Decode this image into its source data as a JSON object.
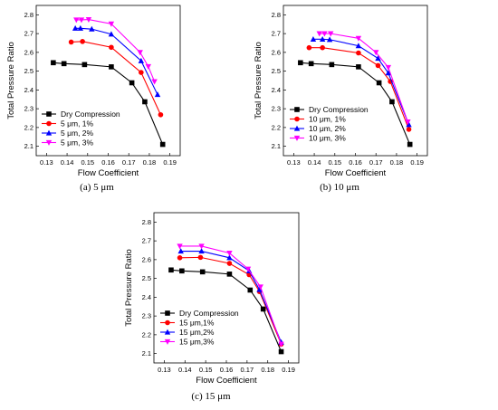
{
  "chart_data": [
    {
      "type": "line",
      "caption": "(a) 5 μm",
      "xlabel": "Flow Coefficient",
      "ylabel": "Total Pressure Ratio",
      "xlim": [
        0.125,
        0.195
      ],
      "ylim": [
        2.05,
        2.85
      ],
      "xticks": [
        0.13,
        0.14,
        0.15,
        0.16,
        0.17,
        0.18,
        0.19
      ],
      "yticks": [
        2.1,
        2.2,
        2.3,
        2.4,
        2.5,
        2.6,
        2.7,
        2.8
      ],
      "legend_position": "lower-left",
      "series": [
        {
          "name": "Dry Compression",
          "color": "#000000",
          "marker": "square",
          "x": [
            0.1333,
            0.1385,
            0.1485,
            0.1615,
            0.1715,
            0.1778,
            0.1865
          ],
          "y": [
            2.545,
            2.54,
            2.535,
            2.523,
            2.438,
            2.337,
            2.11
          ]
        },
        {
          "name": "5 μm, 1%",
          "color": "#ff0000",
          "marker": "circle",
          "x": [
            0.142,
            0.1475,
            0.1615,
            0.176,
            0.1855
          ],
          "y": [
            2.655,
            2.658,
            2.627,
            2.493,
            2.268
          ]
        },
        {
          "name": "5 μm, 2%",
          "color": "#0000ff",
          "marker": "triangle-up",
          "x": [
            0.144,
            0.1465,
            0.152,
            0.1615,
            0.176,
            0.184
          ],
          "y": [
            2.728,
            2.728,
            2.724,
            2.697,
            2.555,
            2.375
          ]
        },
        {
          "name": "5 μm, 3%",
          "color": "#ff00ff",
          "marker": "triangle-down",
          "x": [
            0.1445,
            0.147,
            0.1505,
            0.1615,
            0.1755,
            0.1795,
            0.1825
          ],
          "y": [
            2.773,
            2.773,
            2.775,
            2.752,
            2.6,
            2.525,
            2.445
          ]
        }
      ]
    },
    {
      "type": "line",
      "caption": "(b) 10 μm",
      "xlabel": "Flow Coefficient",
      "ylabel": "Total Pressure Ratio",
      "xlim": [
        0.125,
        0.195
      ],
      "ylim": [
        2.05,
        2.85
      ],
      "xticks": [
        0.13,
        0.14,
        0.15,
        0.16,
        0.17,
        0.18,
        0.19
      ],
      "yticks": [
        2.1,
        2.2,
        2.3,
        2.4,
        2.5,
        2.6,
        2.7,
        2.8
      ],
      "legend_position": "lower-left",
      "series": [
        {
          "name": "Dry Compression",
          "color": "#000000",
          "marker": "square",
          "x": [
            0.1333,
            0.1385,
            0.1485,
            0.1615,
            0.1715,
            0.1778,
            0.1865
          ],
          "y": [
            2.545,
            2.54,
            2.535,
            2.523,
            2.438,
            2.337,
            2.11
          ]
        },
        {
          "name": "10 μm, 1%",
          "color": "#ff0000",
          "marker": "circle",
          "x": [
            0.1375,
            0.144,
            0.1615,
            0.171,
            0.177,
            0.186
          ],
          "y": [
            2.625,
            2.625,
            2.597,
            2.53,
            2.445,
            2.19
          ]
        },
        {
          "name": "10 μm, 2%",
          "color": "#0000ff",
          "marker": "triangle-up",
          "x": [
            0.1395,
            0.144,
            0.1475,
            0.1615,
            0.171,
            0.176,
            0.186
          ],
          "y": [
            2.67,
            2.67,
            2.668,
            2.635,
            2.568,
            2.49,
            2.215
          ]
        },
        {
          "name": "10 μm, 3%",
          "color": "#ff00ff",
          "marker": "triangle-down",
          "x": [
            0.1425,
            0.145,
            0.148,
            0.1615,
            0.17,
            0.176,
            0.1855
          ],
          "y": [
            2.7,
            2.7,
            2.7,
            2.675,
            2.6,
            2.52,
            2.23
          ]
        }
      ]
    },
    {
      "type": "line",
      "caption": "(c) 15 μm",
      "xlabel": "Flow Coefficient",
      "ylabel": "Total Pressure Ratio",
      "xlim": [
        0.125,
        0.195
      ],
      "ylim": [
        2.05,
        2.85
      ],
      "xticks": [
        0.13,
        0.14,
        0.15,
        0.16,
        0.17,
        0.18,
        0.19
      ],
      "yticks": [
        2.1,
        2.2,
        2.3,
        2.4,
        2.5,
        2.6,
        2.7,
        2.8
      ],
      "legend_position": "lower-left",
      "series": [
        {
          "name": "Dry Compression",
          "color": "#000000",
          "marker": "square",
          "x": [
            0.1333,
            0.1385,
            0.1485,
            0.1615,
            0.1715,
            0.1778,
            0.1865
          ],
          "y": [
            2.545,
            2.54,
            2.535,
            2.523,
            2.438,
            2.337,
            2.11
          ]
        },
        {
          "name": "15 μm,1%",
          "color": "#ff0000",
          "marker": "circle",
          "x": [
            0.1375,
            0.1475,
            0.1615,
            0.171,
            0.176,
            0.1865
          ],
          "y": [
            2.61,
            2.612,
            2.58,
            2.52,
            2.43,
            2.15
          ]
        },
        {
          "name": "15 μm,2%",
          "color": "#0000ff",
          "marker": "triangle-up",
          "x": [
            0.138,
            0.148,
            0.1615,
            0.171,
            0.176,
            0.1865
          ],
          "y": [
            2.645,
            2.645,
            2.61,
            2.54,
            2.44,
            2.16
          ]
        },
        {
          "name": "15 μm,3%",
          "color": "#ff00ff",
          "marker": "triangle-down",
          "x": [
            0.1375,
            0.148,
            0.1615,
            0.1705,
            0.1765,
            0.1865
          ],
          "y": [
            2.672,
            2.672,
            2.635,
            2.55,
            2.455,
            2.15
          ]
        }
      ]
    }
  ]
}
